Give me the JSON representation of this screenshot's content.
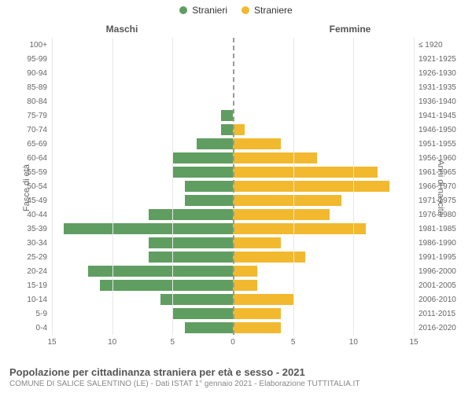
{
  "legend": {
    "male": {
      "label": "Stranieri",
      "color": "#5f9e60"
    },
    "female": {
      "label": "Straniere",
      "color": "#f2b92f"
    }
  },
  "headers": {
    "male": "Maschi",
    "female": "Femmine"
  },
  "axis_titles": {
    "left": "Fasce di età",
    "right": "Anni di nascita"
  },
  "x_axis": {
    "max": 15,
    "ticks_left": [
      15,
      10,
      5,
      0
    ],
    "ticks_right": [
      0,
      5,
      10,
      15
    ]
  },
  "grid_color": "#e8e8e8",
  "center_line_color": "#999999",
  "background_color": "#ffffff",
  "rows": [
    {
      "age": "100+",
      "birth": "≤ 1920",
      "m": 0,
      "f": 0
    },
    {
      "age": "95-99",
      "birth": "1921-1925",
      "m": 0,
      "f": 0
    },
    {
      "age": "90-94",
      "birth": "1926-1930",
      "m": 0,
      "f": 0
    },
    {
      "age": "85-89",
      "birth": "1931-1935",
      "m": 0,
      "f": 0
    },
    {
      "age": "80-84",
      "birth": "1936-1940",
      "m": 0,
      "f": 0
    },
    {
      "age": "75-79",
      "birth": "1941-1945",
      "m": 1,
      "f": 0
    },
    {
      "age": "70-74",
      "birth": "1946-1950",
      "m": 1,
      "f": 1
    },
    {
      "age": "65-69",
      "birth": "1951-1955",
      "m": 3,
      "f": 4
    },
    {
      "age": "60-64",
      "birth": "1956-1960",
      "m": 5,
      "f": 7
    },
    {
      "age": "55-59",
      "birth": "1961-1965",
      "m": 5,
      "f": 12
    },
    {
      "age": "50-54",
      "birth": "1966-1970",
      "m": 4,
      "f": 13
    },
    {
      "age": "45-49",
      "birth": "1971-1975",
      "m": 4,
      "f": 9
    },
    {
      "age": "40-44",
      "birth": "1976-1980",
      "m": 7,
      "f": 8
    },
    {
      "age": "35-39",
      "birth": "1981-1985",
      "m": 14,
      "f": 11
    },
    {
      "age": "30-34",
      "birth": "1986-1990",
      "m": 7,
      "f": 4
    },
    {
      "age": "25-29",
      "birth": "1991-1995",
      "m": 7,
      "f": 6
    },
    {
      "age": "20-24",
      "birth": "1996-2000",
      "m": 12,
      "f": 2
    },
    {
      "age": "15-19",
      "birth": "2001-2005",
      "m": 11,
      "f": 2
    },
    {
      "age": "10-14",
      "birth": "2006-2010",
      "m": 6,
      "f": 5
    },
    {
      "age": "5-9",
      "birth": "2011-2015",
      "m": 5,
      "f": 4
    },
    {
      "age": "0-4",
      "birth": "2016-2020",
      "m": 4,
      "f": 4
    }
  ],
  "footer": {
    "title": "Popolazione per cittadinanza straniera per età e sesso - 2021",
    "subtitle": "COMUNE DI SALICE SALENTINO (LE) - Dati ISTAT 1° gennaio 2021 - Elaborazione TUTTITALIA.IT"
  }
}
